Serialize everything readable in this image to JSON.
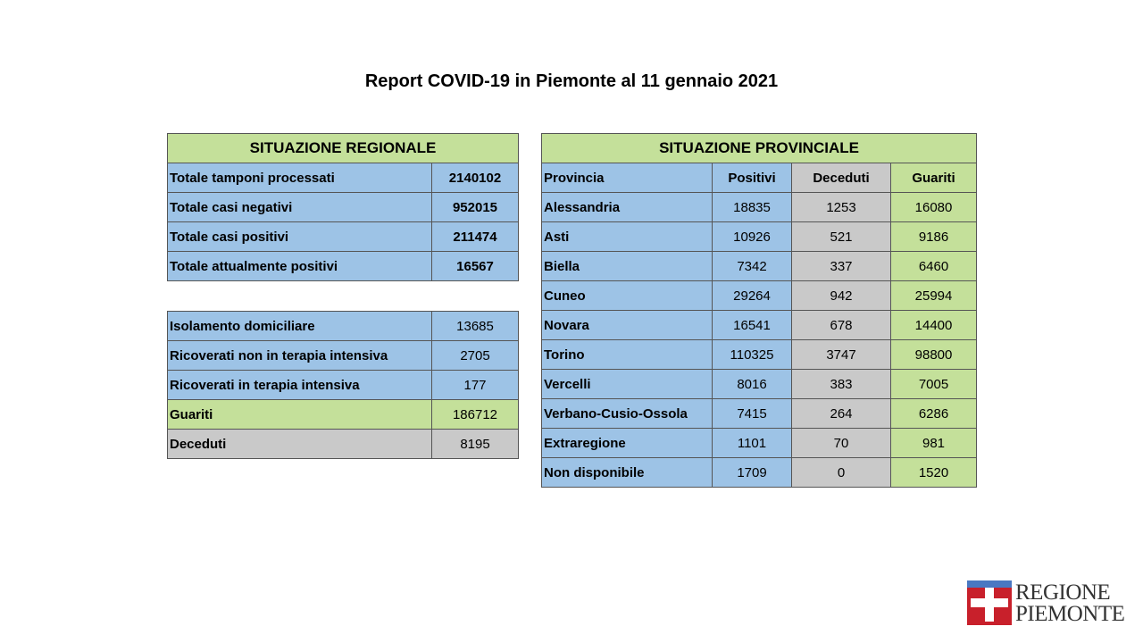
{
  "title": "Report COVID-19 in Piemonte al 11 gennaio 2021",
  "regional": {
    "header": "SITUAZIONE REGIONALE",
    "rows": [
      {
        "label": "Totale tamponi processati",
        "value": "2140102"
      },
      {
        "label": "Totale casi negativi",
        "value": "952015"
      },
      {
        "label": "Totale casi positivi",
        "value": "211474"
      },
      {
        "label": "Totale attualmente positivi",
        "value": "16567"
      }
    ]
  },
  "regional_detail": {
    "rows": [
      {
        "label": "Isolamento domiciliare",
        "value": "13685"
      },
      {
        "label": "Ricoverati non in terapia intensiva",
        "value": "2705"
      },
      {
        "label": "Ricoverati in terapia intensiva",
        "value": "177"
      },
      {
        "label": "Guariti",
        "value": "186712"
      },
      {
        "label": "Deceduti",
        "value": "8195"
      }
    ]
  },
  "provincial": {
    "header": "SITUAZIONE PROVINCIALE",
    "columns": [
      "Provincia",
      "Positivi",
      "Deceduti",
      "Guariti"
    ],
    "rows": [
      {
        "provincia": "Alessandria",
        "positivi": "18835",
        "deceduti": "1253",
        "guariti": "16080"
      },
      {
        "provincia": "Asti",
        "positivi": "10926",
        "deceduti": "521",
        "guariti": "9186"
      },
      {
        "provincia": "Biella",
        "positivi": "7342",
        "deceduti": "337",
        "guariti": "6460"
      },
      {
        "provincia": "Cuneo",
        "positivi": "29264",
        "deceduti": "942",
        "guariti": "25994"
      },
      {
        "provincia": "Novara",
        "positivi": "16541",
        "deceduti": "678",
        "guariti": "14400"
      },
      {
        "provincia": "Torino",
        "positivi": "110325",
        "deceduti": "3747",
        "guariti": "98800"
      },
      {
        "provincia": "Vercelli",
        "positivi": "8016",
        "deceduti": "383",
        "guariti": "7005"
      },
      {
        "provincia": "Verbano-Cusio-Ossola",
        "positivi": "7415",
        "deceduti": "264",
        "guariti": "6286"
      },
      {
        "provincia": "Extraregione",
        "positivi": "1101",
        "deceduti": "70",
        "guariti": "981"
      },
      {
        "provincia": "Non disponibile",
        "positivi": "1709",
        "deceduti": "0",
        "guariti": "1520"
      }
    ]
  },
  "logo": {
    "line1": "REGIONE",
    "line2": "PIEMONTE"
  },
  "colors": {
    "header_green": "#c4e09a",
    "cell_blue": "#9dc3e6",
    "cell_grey": "#c9c9c9",
    "logo_red": "#c8202b",
    "logo_blue": "#4a78c2"
  }
}
